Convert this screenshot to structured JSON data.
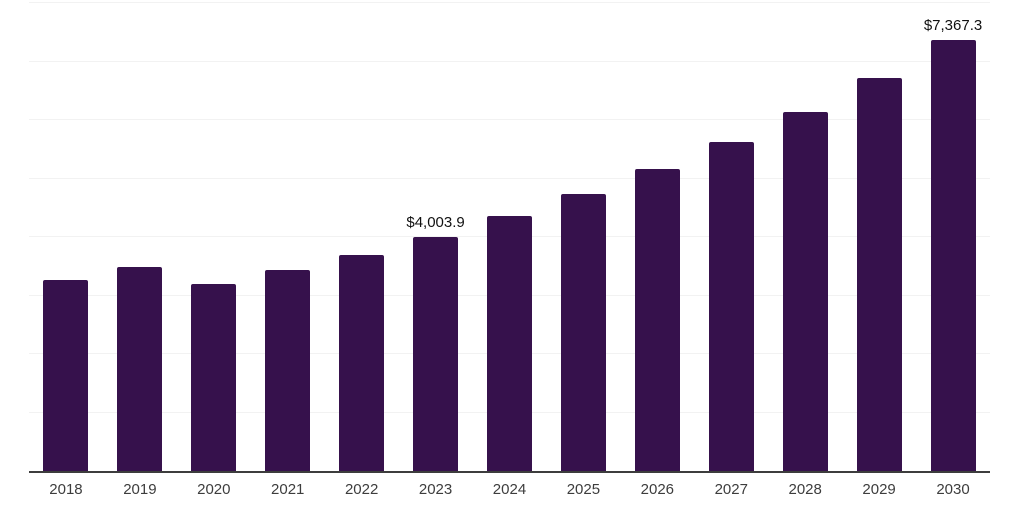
{
  "chart": {
    "background_color": "#ffffff",
    "bar_color": "#36114C",
    "axis_line_color": "#3d3d3d",
    "gridline_color": "#f2f2f2",
    "tick_label_color": "#3d3d3d",
    "data_label_color": "#111111"
  },
  "chart_data": {
    "type": "bar",
    "title": "",
    "xlabel": "",
    "ylabel": "",
    "categories": [
      "2018",
      "2019",
      "2020",
      "2021",
      "2022",
      "2023",
      "2024",
      "2025",
      "2026",
      "2027",
      "2028",
      "2029",
      "2030"
    ],
    "values": [
      3260,
      3490,
      3195,
      3440,
      3700,
      4003.9,
      4360,
      4730,
      5155,
      5620,
      6145,
      6725,
      7367.3
    ],
    "data_labels": {
      "2023": "$4,003.9",
      "2030": "$7,367.3"
    },
    "ylim": [
      0,
      8000
    ],
    "gridline_step": 1000,
    "grid": true,
    "y_axis_tick_labels_visible": false,
    "legend_position": "none"
  }
}
